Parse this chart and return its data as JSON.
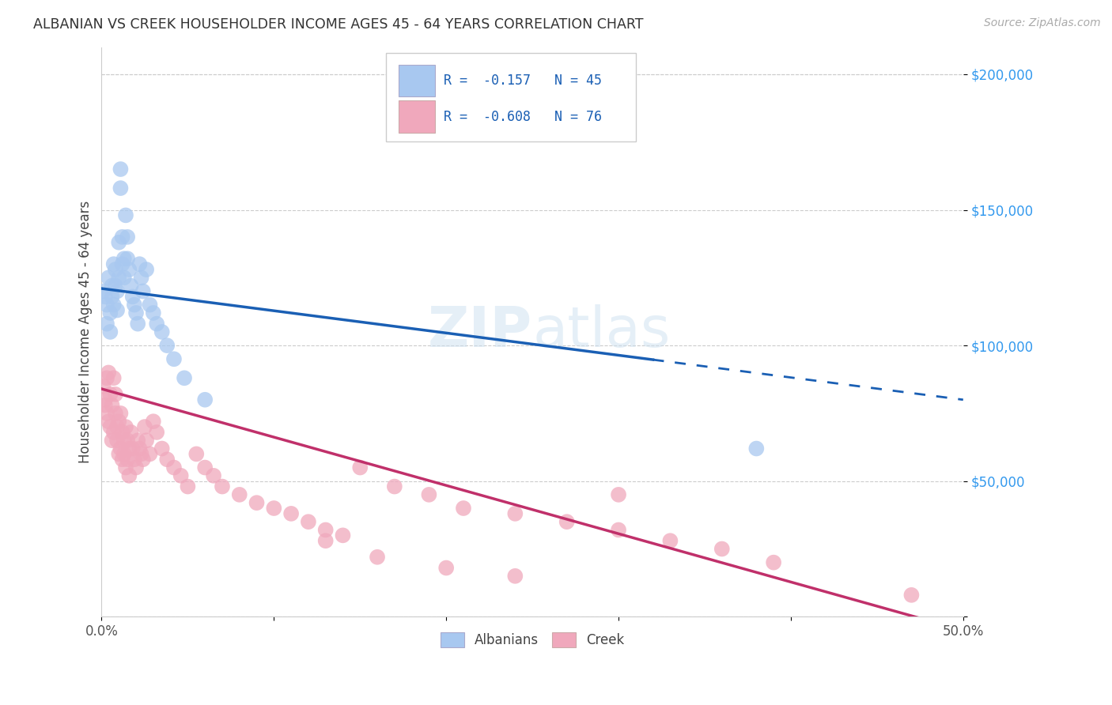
{
  "title": "ALBANIAN VS CREEK HOUSEHOLDER INCOME AGES 45 - 64 YEARS CORRELATION CHART",
  "source": "Source: ZipAtlas.com",
  "ylabel": "Householder Income Ages 45 - 64 years",
  "xlim": [
    0.0,
    0.5
  ],
  "ylim": [
    0,
    210000
  ],
  "albanian_color": "#a8c8f0",
  "creek_color": "#f0a8bc",
  "line_albanian_color": "#1a5fb4",
  "line_creek_color": "#c0306a",
  "background_color": "#ffffff",
  "grid_color": "#cccccc",
  "albanian_x": [
    0.001,
    0.002,
    0.003,
    0.003,
    0.004,
    0.005,
    0.005,
    0.006,
    0.006,
    0.007,
    0.007,
    0.008,
    0.008,
    0.009,
    0.009,
    0.01,
    0.01,
    0.011,
    0.011,
    0.012,
    0.012,
    0.013,
    0.013,
    0.014,
    0.015,
    0.015,
    0.016,
    0.017,
    0.018,
    0.019,
    0.02,
    0.021,
    0.022,
    0.023,
    0.024,
    0.026,
    0.028,
    0.03,
    0.032,
    0.035,
    0.038,
    0.042,
    0.048,
    0.06,
    0.38
  ],
  "albanian_y": [
    120000,
    118000,
    115000,
    108000,
    125000,
    112000,
    105000,
    122000,
    118000,
    130000,
    115000,
    128000,
    122000,
    120000,
    113000,
    138000,
    125000,
    165000,
    158000,
    140000,
    130000,
    132000,
    125000,
    148000,
    140000,
    132000,
    128000,
    122000,
    118000,
    115000,
    112000,
    108000,
    130000,
    125000,
    120000,
    128000,
    115000,
    112000,
    108000,
    105000,
    100000,
    95000,
    88000,
    80000,
    62000
  ],
  "creek_x": [
    0.001,
    0.002,
    0.002,
    0.003,
    0.003,
    0.004,
    0.004,
    0.005,
    0.005,
    0.006,
    0.006,
    0.007,
    0.007,
    0.008,
    0.008,
    0.009,
    0.009,
    0.01,
    0.01,
    0.011,
    0.011,
    0.012,
    0.012,
    0.013,
    0.013,
    0.014,
    0.014,
    0.015,
    0.015,
    0.016,
    0.016,
    0.017,
    0.018,
    0.019,
    0.02,
    0.021,
    0.022,
    0.023,
    0.024,
    0.025,
    0.026,
    0.028,
    0.03,
    0.032,
    0.035,
    0.038,
    0.042,
    0.046,
    0.05,
    0.055,
    0.06,
    0.065,
    0.07,
    0.08,
    0.09,
    0.1,
    0.11,
    0.12,
    0.13,
    0.14,
    0.15,
    0.17,
    0.19,
    0.21,
    0.24,
    0.27,
    0.3,
    0.33,
    0.36,
    0.39,
    0.13,
    0.16,
    0.2,
    0.24,
    0.3,
    0.47
  ],
  "creek_y": [
    85000,
    80000,
    78000,
    88000,
    75000,
    90000,
    72000,
    82000,
    70000,
    78000,
    65000,
    88000,
    68000,
    82000,
    75000,
    70000,
    65000,
    72000,
    60000,
    75000,
    62000,
    68000,
    58000,
    65000,
    60000,
    70000,
    55000,
    65000,
    58000,
    62000,
    52000,
    68000,
    62000,
    58000,
    55000,
    65000,
    62000,
    60000,
    58000,
    70000,
    65000,
    60000,
    72000,
    68000,
    62000,
    58000,
    55000,
    52000,
    48000,
    60000,
    55000,
    52000,
    48000,
    45000,
    42000,
    40000,
    38000,
    35000,
    32000,
    30000,
    55000,
    48000,
    45000,
    40000,
    38000,
    35000,
    32000,
    28000,
    25000,
    20000,
    28000,
    22000,
    18000,
    15000,
    45000,
    8000
  ]
}
